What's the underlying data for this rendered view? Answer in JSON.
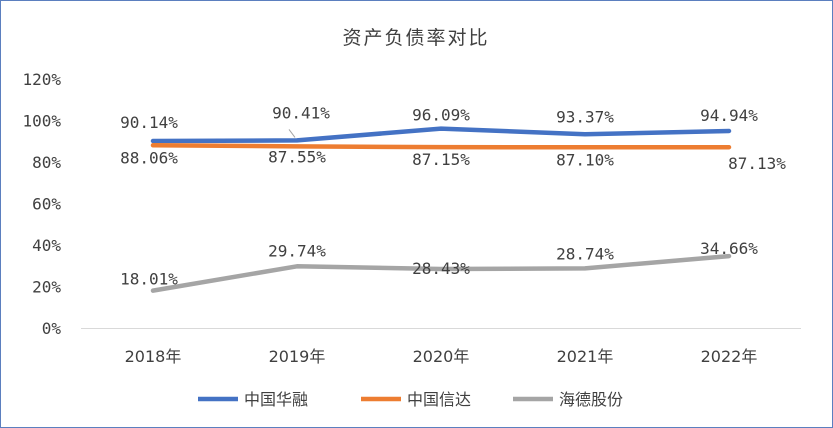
{
  "chart_data": {
    "type": "line",
    "title": "资产负债率对比",
    "categories": [
      "2018年",
      "2019年",
      "2020年",
      "2021年",
      "2022年"
    ],
    "y_ticks": [
      "0%",
      "20%",
      "40%",
      "60%",
      "80%",
      "100%",
      "120%"
    ],
    "ylim": [
      0,
      120
    ],
    "grid": false,
    "legend_position": "bottom",
    "series": [
      {
        "name": "中国华融",
        "color": "#4472c4",
        "values": [
          90.14,
          90.41,
          96.09,
          93.37,
          94.94
        ],
        "labels": [
          "90.14%",
          "90.41%",
          "96.09%",
          "93.37%",
          "94.94%"
        ]
      },
      {
        "name": "中国信达",
        "color": "#ed7d31",
        "values": [
          88.06,
          87.55,
          87.15,
          87.1,
          87.13
        ],
        "labels": [
          "88.06%",
          "87.55%",
          "87.15%",
          "87.10%",
          "87.13%"
        ]
      },
      {
        "name": "海德股份",
        "color": "#a5a5a5",
        "values": [
          18.01,
          29.74,
          28.43,
          28.74,
          34.66
        ],
        "labels": [
          "18.01%",
          "29.74%",
          "28.43%",
          "28.74%",
          "34.66%"
        ]
      }
    ]
  }
}
